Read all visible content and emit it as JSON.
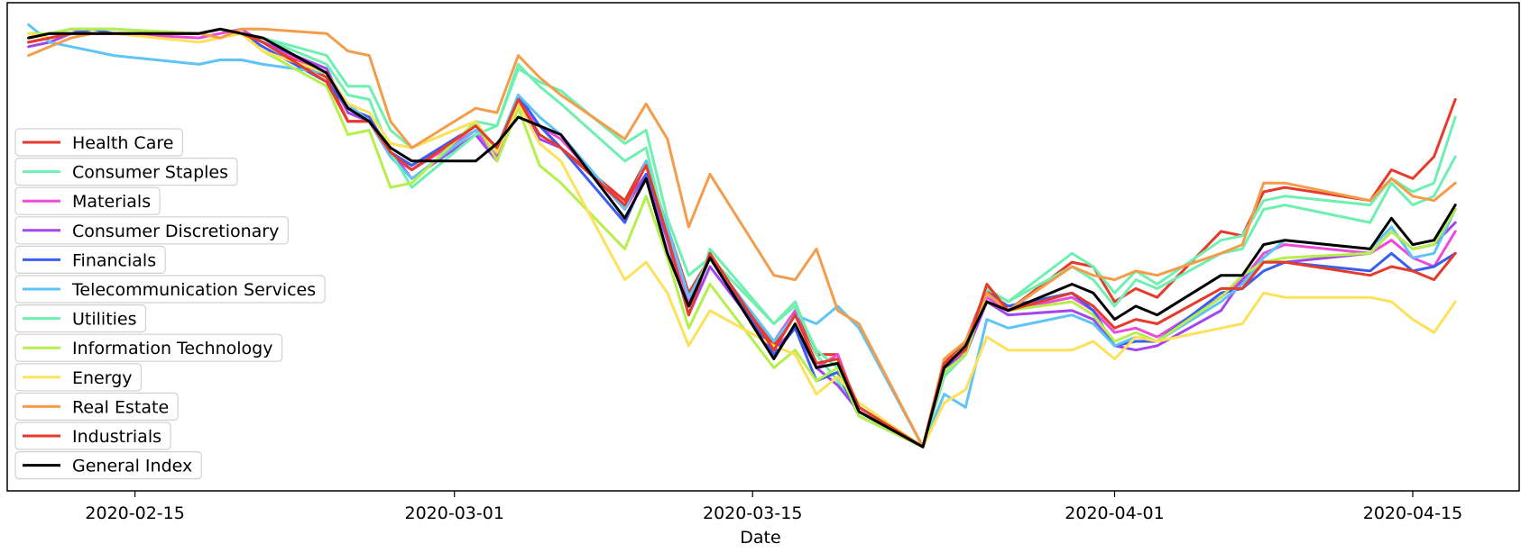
{
  "chart_data": {
    "type": "line",
    "xlabel": "Date",
    "ylabel": "",
    "title": "",
    "x_ticks": [
      "2020-02-15",
      "2020-03-01",
      "2020-03-15",
      "2020-04-01",
      "2020-04-15"
    ],
    "xlim": [
      "2020-02-09",
      "2020-04-20"
    ],
    "ylim": [
      -0.04,
      1.07
    ],
    "grid": false,
    "y_ticks_visible": false,
    "legend_position": "center-left",
    "x": [
      "2020-02-10",
      "2020-02-11",
      "2020-02-12",
      "2020-02-13",
      "2020-02-14",
      "2020-02-18",
      "2020-02-19",
      "2020-02-20",
      "2020-02-21",
      "2020-02-24",
      "2020-02-25",
      "2020-02-26",
      "2020-02-27",
      "2020-02-28",
      "2020-03-02",
      "2020-03-03",
      "2020-03-04",
      "2020-03-05",
      "2020-03-06",
      "2020-03-09",
      "2020-03-10",
      "2020-03-11",
      "2020-03-12",
      "2020-03-13",
      "2020-03-16",
      "2020-03-17",
      "2020-03-18",
      "2020-03-19",
      "2020-03-20",
      "2020-03-23",
      "2020-03-24",
      "2020-03-25",
      "2020-03-26",
      "2020-03-27",
      "2020-03-30",
      "2020-03-31",
      "2020-04-01",
      "2020-04-02",
      "2020-04-03",
      "2020-04-06",
      "2020-04-07",
      "2020-04-08",
      "2020-04-09",
      "2020-04-13",
      "2020-04-14",
      "2020-04-15",
      "2020-04-16",
      "2020-04-17"
    ],
    "series": [
      {
        "name": "Health Care",
        "color": "#e63a2b",
        "values": [
          0.98,
          0.99,
          1.0,
          1.0,
          1.0,
          1.0,
          1.01,
          1.0,
          0.98,
          0.9,
          0.8,
          0.8,
          0.72,
          0.69,
          0.79,
          0.74,
          0.85,
          0.79,
          0.74,
          0.62,
          0.71,
          0.56,
          0.41,
          0.49,
          0.29,
          0.37,
          0.27,
          0.27,
          0.14,
          0.06,
          0.25,
          0.3,
          0.42,
          0.37,
          0.48,
          0.47,
          0.39,
          0.42,
          0.4,
          0.55,
          0.54,
          0.64,
          0.65,
          0.62,
          0.69,
          0.67,
          0.72,
          0.85
        ]
      },
      {
        "name": "Consumer Staples",
        "color": "#6fefb0",
        "values": [
          0.99,
          1.0,
          1.01,
          1.01,
          1.01,
          1.0,
          1.01,
          1.0,
          0.99,
          0.95,
          0.88,
          0.88,
          0.78,
          0.74,
          0.8,
          0.79,
          0.92,
          0.89,
          0.87,
          0.75,
          0.78,
          0.58,
          0.45,
          0.49,
          0.34,
          0.39,
          0.27,
          0.21,
          0.14,
          0.06,
          0.23,
          0.27,
          0.42,
          0.39,
          0.5,
          0.47,
          0.41,
          0.46,
          0.43,
          0.53,
          0.54,
          0.62,
          0.63,
          0.61,
          0.67,
          0.64,
          0.66,
          0.81
        ]
      },
      {
        "name": "Materials",
        "color": "#ec4bd9",
        "values": [
          0.99,
          1.0,
          1.01,
          1.0,
          1.0,
          0.99,
          1.0,
          1.01,
          0.98,
          0.91,
          0.82,
          0.8,
          0.72,
          0.69,
          0.78,
          0.72,
          0.84,
          0.79,
          0.76,
          0.6,
          0.68,
          0.55,
          0.39,
          0.49,
          0.3,
          0.37,
          0.24,
          0.27,
          0.14,
          0.06,
          0.24,
          0.28,
          0.4,
          0.37,
          0.4,
          0.37,
          0.32,
          0.33,
          0.31,
          0.4,
          0.44,
          0.5,
          0.52,
          0.5,
          0.53,
          0.49,
          0.47,
          0.55
        ]
      },
      {
        "name": "Consumer Discretionary",
        "color": "#a346ec",
        "values": [
          0.97,
          0.98,
          1.0,
          1.0,
          1.0,
          1.0,
          1.01,
          1.0,
          0.98,
          0.92,
          0.82,
          0.8,
          0.73,
          0.67,
          0.77,
          0.71,
          0.84,
          0.76,
          0.74,
          0.61,
          0.68,
          0.53,
          0.36,
          0.47,
          0.28,
          0.33,
          0.24,
          0.2,
          0.14,
          0.06,
          0.24,
          0.27,
          0.39,
          0.36,
          0.37,
          0.35,
          0.29,
          0.28,
          0.29,
          0.37,
          0.44,
          0.48,
          0.48,
          0.5,
          0.55,
          0.51,
          0.52,
          0.57
        ]
      },
      {
        "name": "Financials",
        "color": "#3a5ef0",
        "values": [
          0.99,
          1.0,
          1.0,
          1.01,
          1.0,
          1.0,
          1.01,
          1.0,
          0.97,
          0.89,
          0.83,
          0.81,
          0.73,
          0.7,
          0.79,
          0.74,
          0.86,
          0.79,
          0.74,
          0.57,
          0.68,
          0.5,
          0.38,
          0.49,
          0.27,
          0.33,
          0.21,
          0.23,
          0.13,
          0.06,
          0.22,
          0.27,
          0.41,
          0.38,
          0.41,
          0.37,
          0.29,
          0.3,
          0.3,
          0.41,
          0.42,
          0.46,
          0.48,
          0.46,
          0.5,
          0.46,
          0.47,
          0.5
        ]
      },
      {
        "name": "Telecommunication Services",
        "color": "#5ec4f7",
        "values": [
          1.02,
          0.98,
          0.97,
          0.96,
          0.95,
          0.93,
          0.94,
          0.94,
          0.93,
          0.91,
          0.84,
          0.8,
          0.72,
          0.67,
          0.78,
          0.74,
          0.86,
          0.81,
          0.77,
          0.6,
          0.71,
          0.56,
          0.4,
          0.49,
          0.3,
          0.36,
          0.34,
          0.38,
          0.33,
          0.06,
          0.18,
          0.15,
          0.35,
          0.33,
          0.36,
          0.34,
          0.29,
          0.31,
          0.3,
          0.39,
          0.43,
          0.49,
          0.53,
          0.51,
          0.56,
          0.49,
          0.5,
          0.6
        ]
      },
      {
        "name": "Utilities",
        "color": "#6fefb0",
        "values": [
          0.99,
          1.0,
          1.01,
          1.01,
          1.01,
          1.0,
          1.01,
          1.0,
          0.99,
          0.93,
          0.86,
          0.85,
          0.73,
          0.65,
          0.77,
          0.79,
          0.93,
          0.88,
          0.84,
          0.71,
          0.74,
          0.54,
          0.36,
          0.51,
          0.34,
          0.38,
          0.28,
          0.24,
          0.15,
          0.06,
          0.22,
          0.27,
          0.42,
          0.39,
          0.47,
          0.44,
          0.38,
          0.44,
          0.42,
          0.5,
          0.51,
          0.6,
          0.61,
          0.57,
          0.66,
          0.61,
          0.63,
          0.72
        ]
      },
      {
        "name": "Information Technology",
        "color": "#b4ef4b",
        "values": [
          1.0,
          1.0,
          1.01,
          1.01,
          1.01,
          1.0,
          1.01,
          1.0,
          0.96,
          0.88,
          0.77,
          0.78,
          0.65,
          0.66,
          0.8,
          0.71,
          0.83,
          0.7,
          0.66,
          0.51,
          0.63,
          0.49,
          0.33,
          0.43,
          0.24,
          0.28,
          0.21,
          0.24,
          0.13,
          0.06,
          0.23,
          0.27,
          0.41,
          0.37,
          0.39,
          0.36,
          0.3,
          0.32,
          0.3,
          0.4,
          0.45,
          0.48,
          0.49,
          0.5,
          0.55,
          0.51,
          0.52,
          0.6
        ]
      },
      {
        "name": "Energy",
        "color": "#fde15a",
        "values": [
          1.0,
          0.99,
          1.0,
          1.0,
          1.0,
          0.98,
          0.99,
          1.0,
          0.96,
          0.91,
          0.84,
          0.82,
          0.75,
          0.74,
          0.8,
          0.73,
          0.84,
          0.75,
          0.71,
          0.44,
          0.48,
          0.41,
          0.29,
          0.37,
          0.29,
          0.27,
          0.18,
          0.22,
          0.16,
          0.06,
          0.16,
          0.19,
          0.31,
          0.28,
          0.28,
          0.3,
          0.26,
          0.31,
          0.3,
          0.33,
          0.34,
          0.41,
          0.4,
          0.4,
          0.39,
          0.35,
          0.32,
          0.39
        ]
      },
      {
        "name": "Real Estate",
        "color": "#f39d4a",
        "values": [
          0.95,
          0.97,
          0.99,
          1.0,
          1.0,
          1.0,
          0.99,
          1.01,
          1.01,
          1.0,
          0.96,
          0.95,
          0.8,
          0.74,
          0.83,
          0.82,
          0.95,
          0.9,
          0.86,
          0.76,
          0.84,
          0.76,
          0.56,
          0.68,
          0.45,
          0.44,
          0.51,
          0.37,
          0.34,
          0.06,
          0.26,
          0.3,
          0.41,
          0.37,
          0.47,
          0.45,
          0.44,
          0.46,
          0.45,
          0.5,
          0.52,
          0.66,
          0.66,
          0.62,
          0.67,
          0.63,
          0.62,
          0.66
        ]
      },
      {
        "name": "Industrials",
        "color": "#e63a2b",
        "values": [
          0.98,
          0.99,
          1.0,
          1.0,
          1.0,
          1.0,
          1.01,
          1.0,
          0.98,
          0.89,
          0.8,
          0.8,
          0.73,
          0.69,
          0.79,
          0.74,
          0.85,
          0.77,
          0.74,
          0.61,
          0.7,
          0.54,
          0.36,
          0.5,
          0.28,
          0.36,
          0.25,
          0.26,
          0.15,
          0.06,
          0.25,
          0.28,
          0.43,
          0.37,
          0.41,
          0.38,
          0.33,
          0.35,
          0.34,
          0.42,
          0.42,
          0.48,
          0.48,
          0.45,
          0.47,
          0.46,
          0.44,
          0.5
        ]
      },
      {
        "name": "General Index",
        "color": "#000000",
        "values": [
          0.99,
          1.0,
          1.0,
          1.0,
          1.0,
          1.0,
          1.01,
          1.0,
          0.99,
          0.91,
          0.83,
          0.8,
          0.74,
          0.71,
          0.71,
          0.75,
          0.81,
          0.79,
          0.77,
          0.58,
          0.67,
          0.5,
          0.38,
          0.49,
          0.26,
          0.34,
          0.24,
          0.25,
          0.14,
          0.06,
          0.24,
          0.29,
          0.39,
          0.37,
          0.43,
          0.41,
          0.35,
          0.38,
          0.36,
          0.45,
          0.45,
          0.52,
          0.53,
          0.51,
          0.58,
          0.52,
          0.53,
          0.61
        ]
      }
    ]
  }
}
